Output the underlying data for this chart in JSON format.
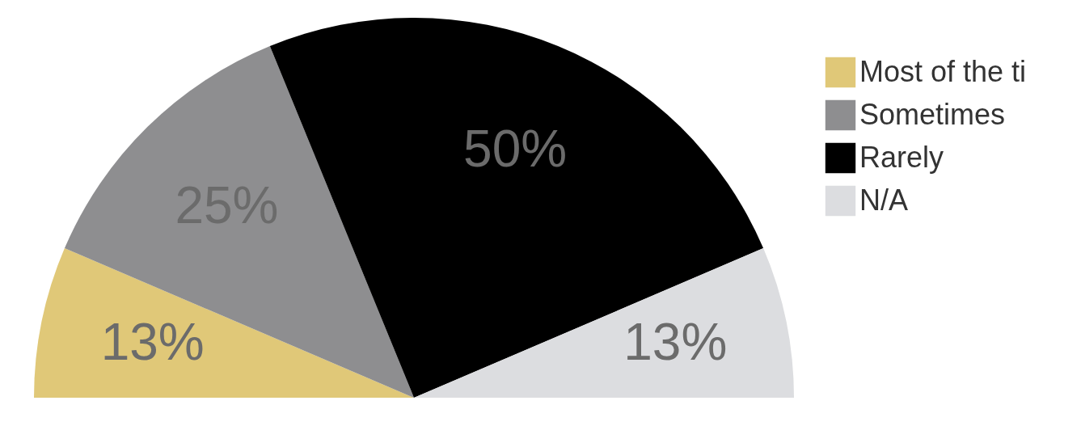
{
  "chart_data": {
    "type": "pie",
    "categories": [
      "Most of the ti",
      "Sometimes",
      "Rarely",
      "N/A"
    ],
    "values": [
      13,
      25,
      50,
      13
    ],
    "colors": [
      "#e0c878",
      "#8e8e90",
      "#000000",
      "#dcdde0"
    ],
    "value_labels": [
      "13%",
      "25%",
      "50%",
      "13%"
    ],
    "legend": "right"
  }
}
